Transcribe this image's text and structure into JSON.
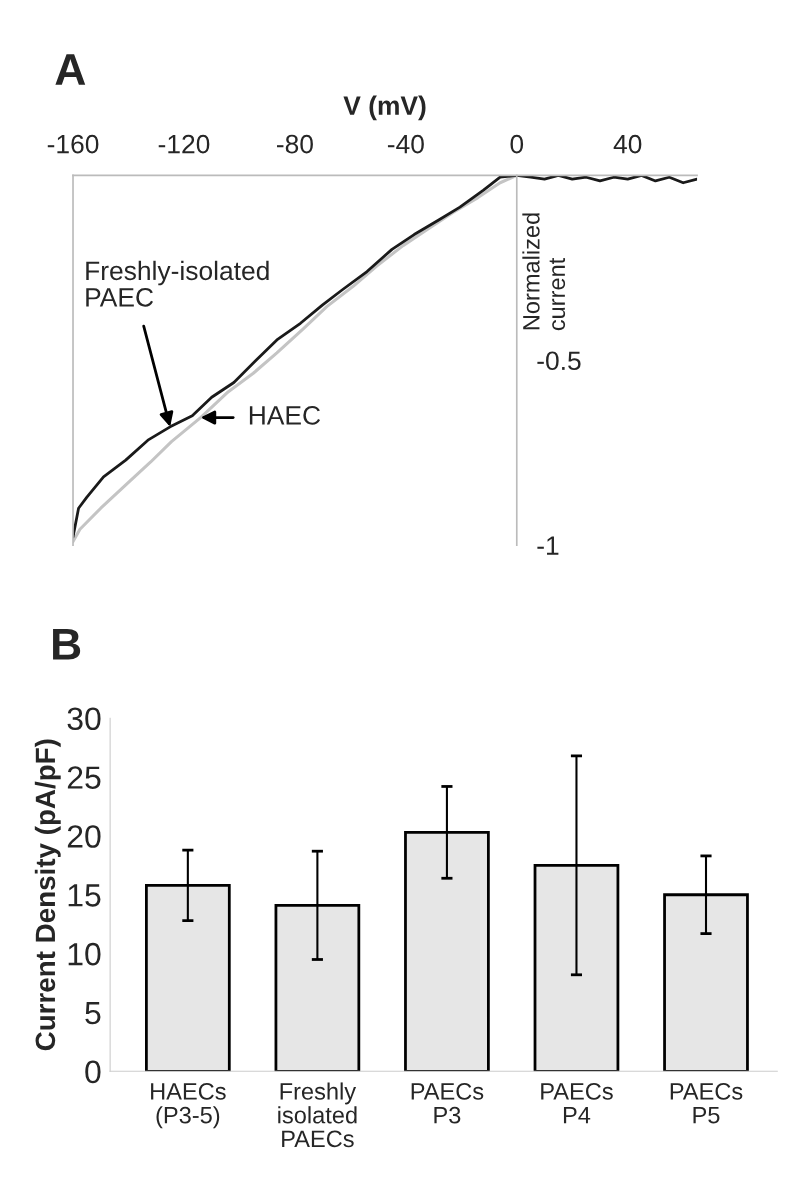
{
  "chart_data": [
    {
      "type": "line",
      "title": "A",
      "xlabel": "V (mV)",
      "ylabel": "Normalized current",
      "xlim": [
        -160,
        65
      ],
      "ylim": [
        -1,
        0
      ],
      "xticks": [
        -160,
        -120,
        -80,
        -40,
        0,
        40
      ],
      "yticks": [
        -1,
        -0.5
      ],
      "grid": false,
      "legend": false,
      "series": [
        {
          "color": "#c4c4c4",
          "x": [
            -160,
            -157.5,
            -150,
            -140,
            -132,
            -124.5,
            -114,
            -104,
            -95,
            -86.5,
            -77,
            -68.5,
            -59,
            -50.5,
            -41,
            -32,
            -23,
            -14,
            -6,
            0
          ],
          "values": [
            -0.99,
            -0.957,
            -0.9,
            -0.83,
            -0.775,
            -0.72,
            -0.655,
            -0.585,
            -0.535,
            -0.48,
            -0.415,
            -0.355,
            -0.3,
            -0.245,
            -0.19,
            -0.145,
            -0.1,
            -0.06,
            -0.02,
            0
          ]
        },
        {
          "color": "#1a1a1a",
          "x": [
            -160,
            -158,
            -155,
            -149,
            -141,
            -133,
            -125,
            -117,
            -110,
            -102,
            -94,
            -86.5,
            -78,
            -70,
            -63,
            -54,
            -45,
            -37,
            -28,
            -20.5,
            -12,
            -6,
            0,
            5,
            10,
            15,
            20,
            25,
            30,
            35,
            40,
            45,
            50,
            55,
            60,
            65
          ],
          "values": [
            -0.978,
            -0.9,
            -0.87,
            -0.815,
            -0.77,
            -0.716,
            -0.68,
            -0.65,
            -0.6,
            -0.56,
            -0.5,
            -0.445,
            -0.4,
            -0.35,
            -0.31,
            -0.26,
            -0.2,
            -0.16,
            -0.12,
            -0.086,
            -0.04,
            -0.005,
            0.0,
            -0.005,
            -0.01,
            0.0,
            -0.01,
            -0.005,
            -0.015,
            -0.005,
            -0.01,
            0.0,
            -0.015,
            -0.005,
            -0.02,
            -0.01
          ]
        }
      ],
      "annotations": [
        {
          "text": "Freshly-isolated\nPAEC",
          "x": -125,
          "y": -0.68
        },
        {
          "text": "HAEC",
          "x": -114,
          "y": -0.655
        }
      ]
    },
    {
      "type": "bar",
      "title": "B",
      "ylabel": "Current Density (pA/pF)",
      "categories": [
        "HAECs\n(P3-5)",
        "Freshly\nisolated\nPAECs",
        "PAECs\nP3",
        "PAECs\nP4",
        "PAECs\nP5"
      ],
      "values": [
        15.8,
        14.1,
        20.3,
        17.5,
        15.0
      ],
      "errors": [
        3.0,
        4.6,
        3.9,
        9.3,
        3.3
      ],
      "color": "#e6e6e6",
      "ylim": [
        0,
        30
      ],
      "yticks": [
        0,
        5,
        10,
        15,
        20,
        25,
        30
      ],
      "grid": false
    }
  ]
}
